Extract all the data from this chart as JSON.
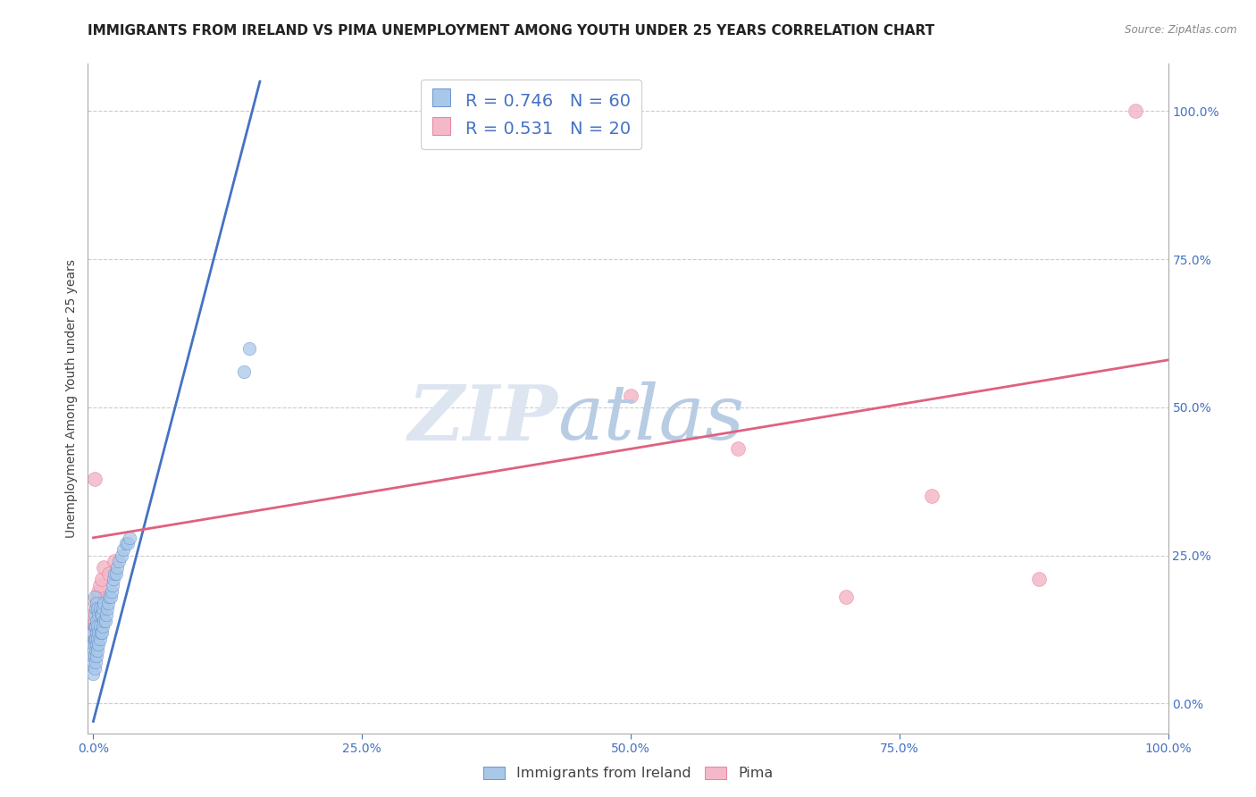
{
  "title": "IMMIGRANTS FROM IRELAND VS PIMA UNEMPLOYMENT AMONG YOUTH UNDER 25 YEARS CORRELATION CHART",
  "source_text": "Source: ZipAtlas.com",
  "ylabel": "Unemployment Among Youth under 25 years",
  "xlim": [
    -0.005,
    1.0
  ],
  "ylim": [
    -0.05,
    1.08
  ],
  "xticks": [
    0,
    0.25,
    0.5,
    0.75,
    1.0
  ],
  "xticklabels": [
    "0.0%",
    "25.0%",
    "50.0%",
    "75.0%",
    "100.0%"
  ],
  "yticks": [
    0,
    0.25,
    0.5,
    0.75,
    1.0
  ],
  "yticklabels": [
    "0.0%",
    "25.0%",
    "50.0%",
    "75.0%",
    "100.0%"
  ],
  "legend_labels": [
    "Immigrants from Ireland",
    "Pima"
  ],
  "blue_color": "#a8c8e8",
  "pink_color": "#f4b8c8",
  "blue_line_color": "#4472c4",
  "pink_line_color": "#e06080",
  "R_blue": 0.746,
  "N_blue": 60,
  "R_pink": 0.531,
  "N_pink": 20,
  "blue_scatter_x": [
    0.0,
    0.0,
    0.0,
    0.0,
    0.0,
    0.001,
    0.001,
    0.001,
    0.001,
    0.001,
    0.001,
    0.001,
    0.002,
    0.002,
    0.002,
    0.002,
    0.002,
    0.003,
    0.003,
    0.003,
    0.003,
    0.003,
    0.004,
    0.004,
    0.004,
    0.004,
    0.005,
    0.005,
    0.005,
    0.006,
    0.006,
    0.006,
    0.007,
    0.007,
    0.008,
    0.008,
    0.009,
    0.009,
    0.01,
    0.01,
    0.011,
    0.012,
    0.013,
    0.014,
    0.015,
    0.016,
    0.017,
    0.018,
    0.019,
    0.02,
    0.021,
    0.022,
    0.024,
    0.026,
    0.028,
    0.03,
    0.032,
    0.034,
    0.14,
    0.145
  ],
  "blue_scatter_y": [
    0.05,
    0.07,
    0.08,
    0.1,
    0.12,
    0.06,
    0.08,
    0.1,
    0.11,
    0.13,
    0.15,
    0.18,
    0.07,
    0.09,
    0.11,
    0.13,
    0.16,
    0.08,
    0.1,
    0.12,
    0.14,
    0.17,
    0.09,
    0.11,
    0.13,
    0.16,
    0.1,
    0.12,
    0.15,
    0.11,
    0.13,
    0.16,
    0.12,
    0.15,
    0.12,
    0.15,
    0.13,
    0.16,
    0.14,
    0.17,
    0.14,
    0.15,
    0.16,
    0.17,
    0.18,
    0.18,
    0.19,
    0.2,
    0.21,
    0.22,
    0.22,
    0.23,
    0.24,
    0.25,
    0.26,
    0.27,
    0.27,
    0.28,
    0.56,
    0.6
  ],
  "blue_line_x0": 0.0,
  "blue_line_y0": -0.03,
  "blue_line_x1": 0.155,
  "blue_line_y1": 1.05,
  "pink_scatter_x": [
    0.0,
    0.0,
    0.001,
    0.001,
    0.002,
    0.002,
    0.003,
    0.004,
    0.005,
    0.006,
    0.008,
    0.01,
    0.015,
    0.02,
    0.5,
    0.6,
    0.7,
    0.78,
    0.88,
    0.97
  ],
  "pink_scatter_y": [
    0.12,
    0.15,
    0.13,
    0.38,
    0.14,
    0.17,
    0.16,
    0.18,
    0.19,
    0.2,
    0.21,
    0.23,
    0.22,
    0.24,
    0.52,
    0.43,
    0.18,
    0.35,
    0.21,
    1.0
  ],
  "pink_line_x0": 0.0,
  "pink_line_y0": 0.28,
  "pink_line_x1": 1.0,
  "pink_line_y1": 0.58,
  "title_fontsize": 11,
  "axis_label_fontsize": 10,
  "tick_fontsize": 10,
  "legend_fontsize": 14,
  "watermark_zip_color": "#d0d8e8",
  "watermark_atlas_color": "#b8d0e8"
}
